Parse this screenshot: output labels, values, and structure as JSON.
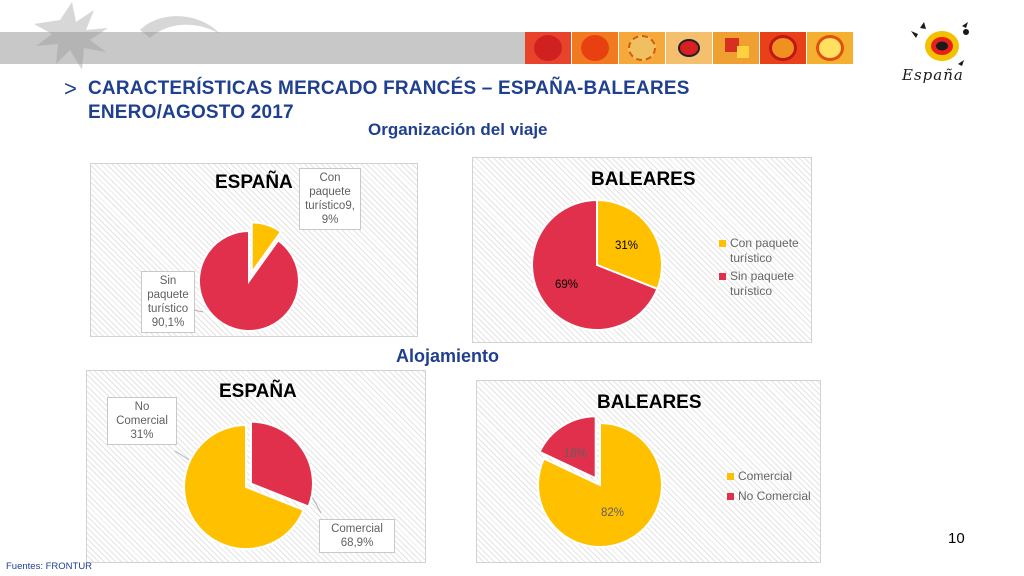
{
  "header": {
    "title_line1": "CARACTERÍSTICAS MERCADO FRANCÉS – ESPAÑA-BALEARES",
    "title_line2": "ENERO/AGOSTO 2017",
    "arrow": ">"
  },
  "logo": {
    "text": "España"
  },
  "sections": {
    "organizacion": "Organización del viaje",
    "alojamiento": "Alojamiento"
  },
  "colors": {
    "red": "#e0304b",
    "yellow": "#ffc000",
    "title_blue": "#1f3f8f"
  },
  "decor_tiles": [
    "sun-red",
    "sun-orange",
    "sun-orange-textured",
    "ladybug",
    "squares",
    "sun-red-ring",
    "sun-yellow-ring"
  ],
  "chart_data": [
    {
      "type": "pie",
      "title": "ESPAÑA",
      "series": [
        {
          "values": [
            9.9,
            90.1
          ]
        }
      ],
      "labels": [
        "Con paquete turístico9,9%",
        "Sin paquete turístico 90,1%"
      ],
      "label_lines": [
        [
          "Con",
          "paquete",
          "turístico9,",
          "9%"
        ],
        [
          "Sin",
          "paquete",
          "turístico",
          "90,1%"
        ]
      ],
      "colors": [
        "#ffc000",
        "#e0304b"
      ],
      "exploded": 0
    },
    {
      "type": "pie",
      "title": "BALEARES",
      "categories": [
        "Con paquete turístico",
        "Sin paquete turístico"
      ],
      "series": [
        {
          "values": [
            31,
            69
          ]
        }
      ],
      "data_labels": [
        "31%",
        "69%"
      ],
      "colors": [
        "#ffc000",
        "#e0304b"
      ],
      "legend_lines": [
        [
          "Con paquete",
          "turístico"
        ],
        [
          "Sin paquete",
          "turístico"
        ]
      ],
      "legend": "right",
      "exploded": 0
    },
    {
      "type": "pie",
      "title": "ESPAÑA",
      "series": [
        {
          "values": [
            31,
            68.9
          ]
        }
      ],
      "labels": [
        "No Comercial 31%",
        "Comercial 68,9%"
      ],
      "label_lines": [
        [
          "No",
          "Comercial",
          "31%"
        ],
        [
          "Comercial",
          "68,9%"
        ]
      ],
      "colors": [
        "#e0304b",
        "#ffc000"
      ],
      "exploded": 1
    },
    {
      "type": "pie",
      "title": "BALEARES",
      "categories": [
        "Comercial",
        "No Comercial"
      ],
      "series": [
        {
          "values": [
            82,
            18
          ]
        }
      ],
      "data_labels": [
        "82%",
        "18%"
      ],
      "colors": [
        "#ffc000",
        "#e0304b"
      ],
      "legend": "right",
      "exploded": 1
    }
  ],
  "footer": {
    "page_number": "10",
    "source": "Fuentes: FRONTUR"
  }
}
